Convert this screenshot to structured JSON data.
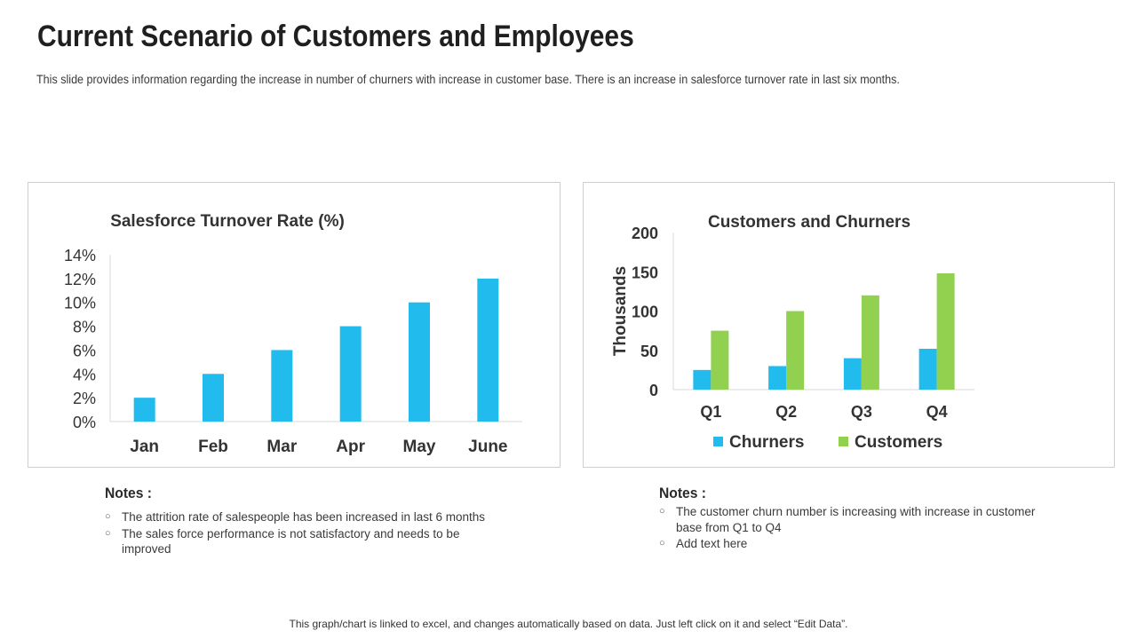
{
  "page": {
    "title": "Current Scenario of Customers and Employees",
    "subtitle": "This slide provides information regarding the increase in number of churners with increase in customer base. There is an increase in salesforce turnover rate in last six months.",
    "footer": "This graph/chart is linked to excel, and changes automatically based on data. Just left click on it and select “Edit Data”."
  },
  "notes_left": {
    "title": "Notes :",
    "bullet": "○",
    "items": [
      "The attrition rate of salespeople has been increased in last 6 months",
      "The sales force performance is not satisfactory and needs to be improved"
    ]
  },
  "notes_right": {
    "title": "Notes :",
    "bullet": "○",
    "items": [
      "The customer churn number is increasing with increase in customer base from Q1 to Q4",
      "Add text here"
    ]
  },
  "chart_data": [
    {
      "type": "bar",
      "title": "Salesforce Turnover Rate (%)",
      "categories": [
        "Jan",
        "Feb",
        "Mar",
        "Apr",
        "May",
        "June"
      ],
      "values": [
        2,
        4,
        6,
        8,
        10,
        12
      ],
      "ylim": [
        0,
        14
      ],
      "yticks": [
        "0%",
        "2%",
        "4%",
        "6%",
        "8%",
        "10%",
        "12%",
        "14%"
      ],
      "xlabel": "",
      "ylabel": "",
      "color": "#22bbee",
      "grid": false
    },
    {
      "type": "bar",
      "title": "Customers and Churners",
      "categories": [
        "Q1",
        "Q2",
        "Q3",
        "Q4"
      ],
      "series": [
        {
          "name": "Churners",
          "values": [
            25,
            30,
            40,
            52
          ],
          "color": "#22bbee"
        },
        {
          "name": "Customers",
          "values": [
            75,
            100,
            120,
            148
          ],
          "color": "#92d050"
        }
      ],
      "ylim": [
        0,
        200
      ],
      "yticks": [
        "0",
        "50",
        "100",
        "150",
        "200"
      ],
      "xlabel": "",
      "ylabel": "Thousands",
      "legend": "bottom",
      "grid": false
    }
  ]
}
